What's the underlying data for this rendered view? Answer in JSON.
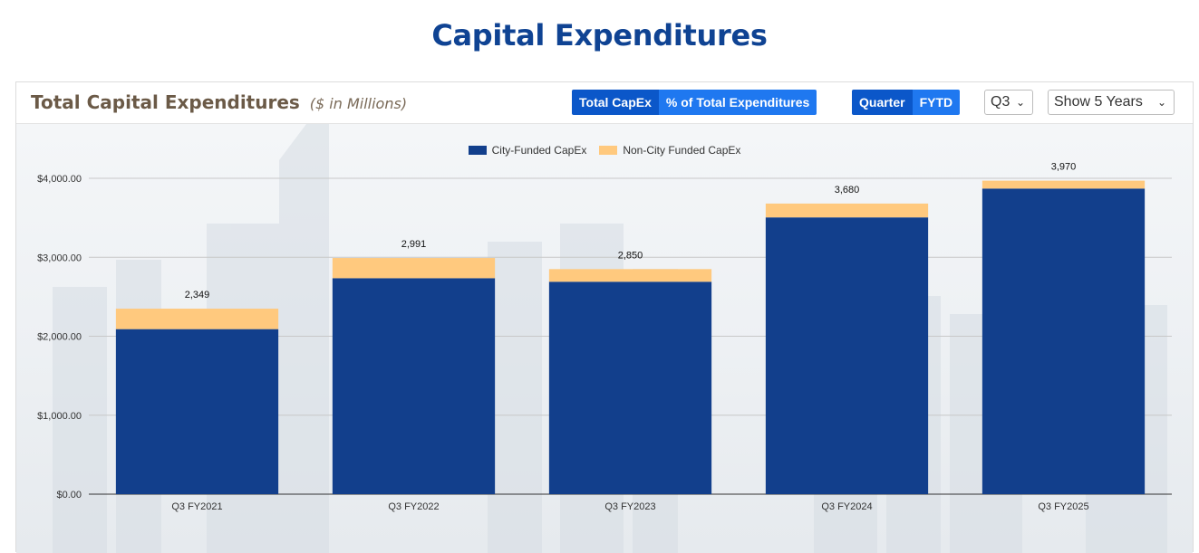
{
  "page": {
    "title": "Capital Expenditures"
  },
  "card": {
    "title": "Total Capital Expenditures",
    "unit": "($ in Millions)"
  },
  "controls": {
    "metric_toggle": [
      {
        "label": "Total CapEx",
        "active": true
      },
      {
        "label": "% of Total Expenditures",
        "active": false
      }
    ],
    "period_toggle": [
      {
        "label": "Quarter",
        "active": true
      },
      {
        "label": "FYTD",
        "active": false
      }
    ],
    "quarter_select": {
      "value": "Q3"
    },
    "years_select": {
      "value": "Show 5 Years"
    }
  },
  "colors": {
    "city_funded": "#123f8c",
    "non_city_funded": "#ffc97e",
    "title": "#0f4393"
  },
  "chart_data": {
    "type": "bar",
    "stacked": true,
    "categories": [
      "Q3 FY2021",
      "Q3 FY2022",
      "Q3 FY2023",
      "Q3 FY2024",
      "Q3 FY2025"
    ],
    "series": [
      {
        "name": "City-Funded CapEx",
        "values": [
          2090,
          2735,
          2690,
          3505,
          3870
        ]
      },
      {
        "name": "Non-City Funded CapEx",
        "values": [
          259,
          256,
          160,
          175,
          100
        ]
      }
    ],
    "totals": [
      2349,
      2991,
      2850,
      3680,
      3970
    ],
    "total_labels": [
      "2,349",
      "2,991",
      "2,850",
      "3,680",
      "3,970"
    ],
    "yticks": [
      0,
      1000,
      2000,
      3000,
      4000
    ],
    "ytick_labels": [
      "$0.00",
      "$1,000.00",
      "$2,000.00",
      "$3,000.00",
      "$4,000.00"
    ],
    "ylim": [
      0,
      4000
    ],
    "grid": true,
    "legend_position": "top"
  }
}
